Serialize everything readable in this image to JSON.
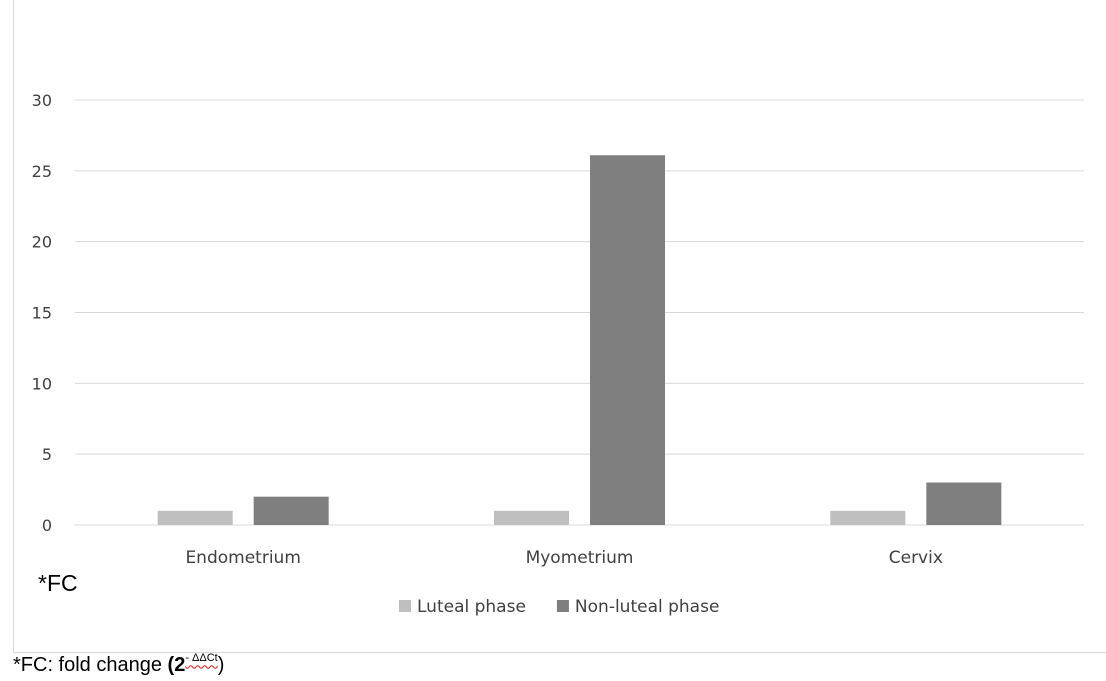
{
  "chart_data": {
    "type": "bar",
    "categories": [
      "Endometrium",
      "Myometrium",
      "Cervix"
    ],
    "series": [
      {
        "name": "Luteal phase",
        "values": [
          1,
          1,
          1
        ],
        "color": "#bfbfbf"
      },
      {
        "name": "Non-luteal phase",
        "values": [
          2,
          26.1,
          3
        ],
        "color": "#7f7f7f"
      }
    ],
    "ylim": [
      0,
      30
    ],
    "yticks": [
      "0",
      "5",
      "10",
      "15",
      "20",
      "25",
      "30"
    ],
    "ytick_values": [
      0,
      5,
      10,
      15,
      20,
      25,
      30
    ],
    "grid": true,
    "legend_position": "bottom",
    "ylabel": "*FC"
  },
  "footnote": {
    "prefix": "*FC: fold change ",
    "open": "(",
    "base": "2",
    "exponent": "- ΔΔCt",
    "close": ")"
  }
}
